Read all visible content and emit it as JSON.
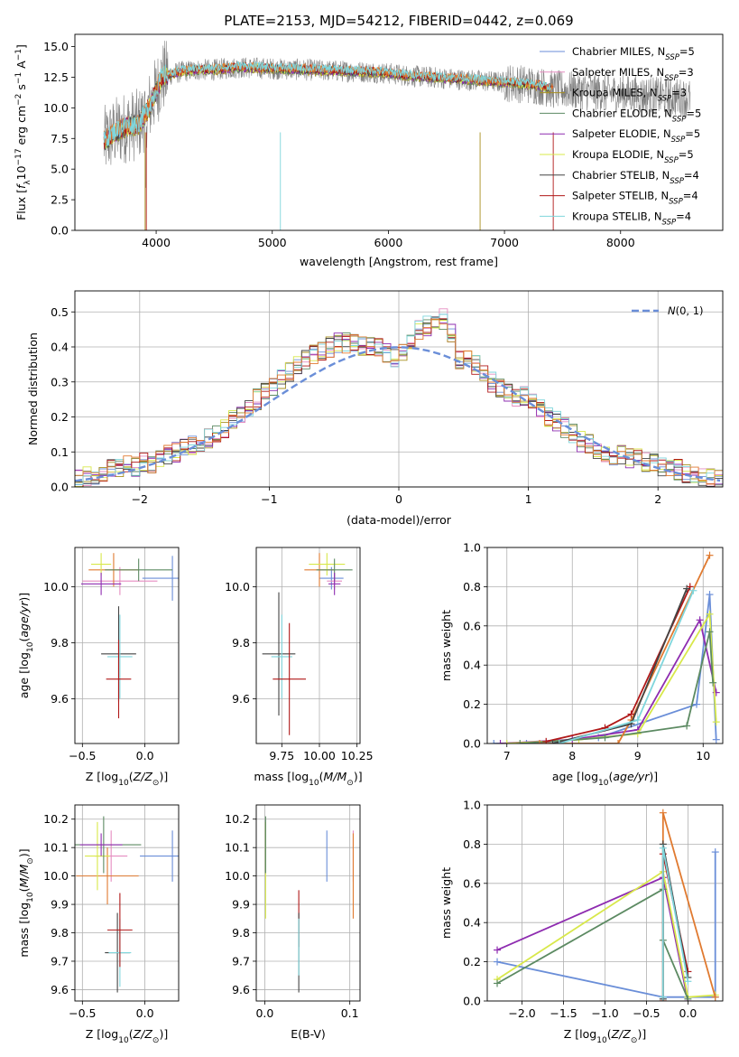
{
  "figure_title": "PLATE=2153, MJD=54212, FIBERID=0442, z=0.069",
  "colors": {
    "Chabrier MILES": "#6a8ed8",
    "Salpeter MILES": "#e58cc0",
    "Kroupa MILES": "#a89020",
    "Chabrier ELODIE": "#5c8a62",
    "Salpeter ELODIE": "#8e2cb0",
    "Kroupa ELODIE": "#d8e84a",
    "Chabrier STELIB": "#444444",
    "Salpeter STELIB": "#b01818",
    "Kroupa STELIB": "#7fd6dc",
    "orange": "#e07a30",
    "grey": "#808080"
  },
  "chart_data": [
    {
      "id": "spectrum",
      "type": "line",
      "title": "PLATE=2153, MJD=54212, FIBERID=0442, z=0.069",
      "xlabel": "wavelength [Angstrom, rest frame]",
      "ylabel": "Flux [f_λ 10^-17 erg cm^-2 s^-1 A^-1]",
      "xlim": [
        3300,
        8880
      ],
      "ylim": [
        0,
        16
      ],
      "xticks": [
        4000,
        5000,
        6000,
        7000,
        8000
      ],
      "yticks": [
        "0.0",
        "2.5",
        "5.0",
        "7.5",
        "10.0",
        "12.5",
        "15.0"
      ],
      "legend_position": "top-right",
      "legend": [
        "Chabrier MILES, N_SSP=5",
        "Salpeter MILES, N_SSP=3",
        "Kroupa MILES, N_SSP=3",
        "Chabrier ELODIE, N_SSP=5",
        "Salpeter ELODIE, N_SSP=5",
        "Kroupa ELODIE, N_SSP=5",
        "Chabrier STELIB, N_SSP=4",
        "Salpeter STELIB, N_SSP=4",
        "Kroupa STELIB, N_SSP=4"
      ],
      "model_continuum": {
        "x": [
          3550,
          3650,
          3750,
          3850,
          3950,
          4050,
          4150,
          4250,
          4350,
          4500,
          4700,
          5000,
          5300,
          5600,
          5900,
          6200,
          6500,
          6800,
          7100,
          7300,
          7420
        ],
        "y": [
          7.2,
          8.0,
          8.5,
          8.6,
          10.2,
          12.5,
          12.8,
          13.0,
          13.1,
          13.1,
          13.3,
          13.2,
          13.1,
          13.0,
          12.9,
          12.6,
          12.4,
          12.2,
          12.0,
          11.8,
          11.5
        ]
      },
      "data_range_x": [
        3550,
        8600
      ]
    },
    {
      "id": "residuals",
      "type": "histogram",
      "xlabel": "(data-model)/error",
      "ylabel": "Normed distribution",
      "xlim": [
        -2.5,
        2.5
      ],
      "ylim": [
        0,
        0.56
      ],
      "xticks": [
        "−2",
        "−1",
        "0",
        "1",
        "2"
      ],
      "yticks": [
        "0.0",
        "0.1",
        "0.2",
        "0.3",
        "0.4",
        "0.5"
      ],
      "legend": [
        "N(0,1)"
      ],
      "bin_width": 0.1,
      "bin_start": -2.5,
      "hist_mean": [
        0.02,
        0.03,
        0.03,
        0.04,
        0.05,
        0.05,
        0.06,
        0.06,
        0.07,
        0.07,
        0.08,
        0.09,
        0.1,
        0.11,
        0.12,
        0.13,
        0.14,
        0.15,
        0.17,
        0.19,
        0.21,
        0.23,
        0.25,
        0.27,
        0.29,
        0.31,
        0.33,
        0.35,
        0.36,
        0.38,
        0.39,
        0.4,
        0.41,
        0.41,
        0.41,
        0.4,
        0.4,
        0.4,
        0.38,
        0.37,
        0.38,
        0.42,
        0.45,
        0.46,
        0.47,
        0.48,
        0.44,
        0.36,
        0.37,
        0.35,
        0.33,
        0.3,
        0.28,
        0.27,
        0.26,
        0.26,
        0.25,
        0.22,
        0.2,
        0.19,
        0.17,
        0.15,
        0.13,
        0.12,
        0.11,
        0.1,
        0.09,
        0.09,
        0.08,
        0.08,
        0.07,
        0.07,
        0.06,
        0.05,
        0.05,
        0.04,
        0.04,
        0.03,
        0.03,
        0.02
      ],
      "hist_width_left": -2.5,
      "normal_curve": {
        "mean": 0,
        "sigma": 1
      }
    },
    {
      "id": "age-vs-z",
      "type": "errorbar",
      "xlabel": "Z [log10(Z/Z_sun)]",
      "ylabel": "age [log10(age/yr)]",
      "xlim": [
        -0.56,
        0.27
      ],
      "ylim": [
        9.44,
        10.14
      ],
      "xticks": [
        "−0.5",
        "0.0"
      ],
      "yticks": [
        "9.6",
        "9.8",
        "10.0"
      ],
      "points": [
        {
          "series": "Chabrier MILES",
          "x": 0.22,
          "xerr": 0.24,
          "y": 10.03,
          "yerr": 0.08
        },
        {
          "series": "Salpeter MILES",
          "x": -0.2,
          "xerr": 0.3,
          "y": 10.02,
          "yerr": 0.05
        },
        {
          "series": "orange",
          "x": -0.25,
          "xerr": 0.2,
          "y": 10.06,
          "yerr": 0.06
        },
        {
          "series": "Kroupa ELODIE",
          "x": -0.35,
          "xerr": 0.08,
          "y": 10.08,
          "yerr": 0.04
        },
        {
          "series": "Chabrier ELODIE",
          "x": -0.05,
          "xerr": 0.27,
          "y": 10.06,
          "yerr": 0.04
        },
        {
          "series": "Salpeter ELODIE",
          "x": -0.35,
          "xerr": 0.16,
          "y": 10.01,
          "yerr": 0.04
        },
        {
          "series": "Chabrier STELIB",
          "x": -0.21,
          "xerr": 0.14,
          "y": 9.76,
          "yerr": 0.17
        },
        {
          "series": "Kroupa STELIB",
          "x": -0.2,
          "xerr": 0.1,
          "y": 9.75,
          "yerr": 0.15
        },
        {
          "series": "Salpeter STELIB",
          "x": -0.21,
          "xerr": 0.1,
          "y": 9.67,
          "yerr": 0.14
        }
      ]
    },
    {
      "id": "age-vs-mass",
      "type": "errorbar",
      "xlabel": "mass [log10(M/M_sun)]",
      "ylabel": "",
      "xlim": [
        9.58,
        10.27
      ],
      "ylim": [
        9.44,
        10.14
      ],
      "xticks": [
        "9.75",
        "10.00",
        "10.25"
      ],
      "yticks": [
        "9.6",
        "9.8",
        "10.0"
      ],
      "points": [
        {
          "series": "Chabrier MILES",
          "x": 10.08,
          "xerr": 0.08,
          "y": 10.03,
          "yerr": 0.04
        },
        {
          "series": "Salpeter MILES",
          "x": 10.1,
          "xerr": 0.05,
          "y": 10.02,
          "yerr": 0.03
        },
        {
          "series": "orange",
          "x": 10.0,
          "xerr": 0.1,
          "y": 10.06,
          "yerr": 0.06
        },
        {
          "series": "Kroupa ELODIE",
          "x": 10.05,
          "xerr": 0.12,
          "y": 10.08,
          "yerr": 0.04
        },
        {
          "series": "Chabrier ELODIE",
          "x": 10.1,
          "xerr": 0.12,
          "y": 10.06,
          "yerr": 0.04
        },
        {
          "series": "Salpeter ELODIE",
          "x": 10.1,
          "xerr": 0.04,
          "y": 10.01,
          "yerr": 0.04
        },
        {
          "series": "Chabrier STELIB",
          "x": 9.73,
          "xerr": 0.11,
          "y": 9.76,
          "yerr": 0.22
        },
        {
          "series": "Kroupa STELIB",
          "x": 9.75,
          "xerr": 0.07,
          "y": 9.75,
          "yerr": 0.15
        },
        {
          "series": "Salpeter STELIB",
          "x": 9.8,
          "xerr": 0.11,
          "y": 9.67,
          "yerr": 0.2
        }
      ]
    },
    {
      "id": "mass-weight-vs-age",
      "type": "line",
      "xlabel": "age [log10(age/yr)]",
      "ylabel": "mass weight",
      "xlim": [
        6.7,
        10.3
      ],
      "ylim": [
        0,
        1
      ],
      "xticks": [
        "7",
        "8",
        "9",
        "10"
      ],
      "yticks": [
        "0.0",
        "0.2",
        "0.4",
        "0.6",
        "0.8",
        "1.0"
      ],
      "series": [
        {
          "name": "Chabrier MILES",
          "x": [
            6.8,
            7.3,
            8.4,
            9.9,
            10.1,
            10.2
          ],
          "y": [
            0.0,
            0.0,
            0.03,
            0.2,
            0.76,
            0.02
          ]
        },
        {
          "name": "Salpeter ELODIE",
          "x": [
            6.9,
            8.0,
            9.0,
            9.95,
            10.2
          ],
          "y": [
            0.0,
            0.02,
            0.07,
            0.63,
            0.26
          ]
        },
        {
          "name": "Kroupa ELODIE",
          "x": [
            7.0,
            8.1,
            9.0,
            10.1,
            10.2
          ],
          "y": [
            0.0,
            0.02,
            0.05,
            0.66,
            0.11
          ]
        },
        {
          "name": "Chabrier ELODIE",
          "x": [
            7.2,
            8.5,
            9.75,
            10.1,
            10.15
          ],
          "y": [
            0.0,
            0.03,
            0.09,
            0.57,
            0.31
          ]
        },
        {
          "name": "orange",
          "x": [
            7.5,
            8.7,
            8.9,
            10.1
          ],
          "y": [
            0.0,
            0.0,
            0.12,
            0.96
          ]
        },
        {
          "name": "Salpeter STELIB",
          "x": [
            7.6,
            8.5,
            8.9,
            9.8
          ],
          "y": [
            0.01,
            0.08,
            0.15,
            0.8
          ]
        },
        {
          "name": "Chabrier STELIB",
          "x": [
            7.7,
            8.9,
            9.75
          ],
          "y": [
            0.0,
            0.1,
            0.79
          ]
        },
        {
          "name": "Kroupa STELIB",
          "x": [
            7.8,
            9.0,
            9.85
          ],
          "y": [
            0.0,
            0.12,
            0.78
          ]
        }
      ]
    },
    {
      "id": "mass-vs-z",
      "type": "errorbar",
      "xlabel": "Z [log10(Z/Z_sun)]",
      "ylabel": "mass [log10(M/M_sun)]",
      "xlim": [
        -0.56,
        0.27
      ],
      "ylim": [
        9.56,
        10.25
      ],
      "xticks": [
        "−0.5",
        "0.0"
      ],
      "yticks": [
        "9.6",
        "9.7",
        "9.8",
        "9.9",
        "10.0",
        "10.1",
        "10.2"
      ],
      "points": [
        {
          "series": "Chabrier MILES",
          "x": 0.22,
          "xerr": 0.26,
          "y": 10.07,
          "yerr": 0.09
        },
        {
          "series": "Salpeter MILES",
          "x": -0.27,
          "xerr": 0.13,
          "y": 10.07,
          "yerr": 0.09
        },
        {
          "series": "orange",
          "x": -0.3,
          "xerr": 0.25,
          "y": 10.0,
          "yerr": 0.1
        },
        {
          "series": "Kroupa ELODIE",
          "x": -0.38,
          "xerr": 0.1,
          "y": 10.07,
          "yerr": 0.12
        },
        {
          "series": "Chabrier ELODIE",
          "x": -0.33,
          "xerr": 0.3,
          "y": 10.11,
          "yerr": 0.1
        },
        {
          "series": "Salpeter ELODIE",
          "x": -0.35,
          "xerr": 0.17,
          "y": 10.11,
          "yerr": 0.04
        },
        {
          "series": "Chabrier STELIB",
          "x": -0.22,
          "xerr": 0.1,
          "y": 9.73,
          "yerr": 0.14
        },
        {
          "series": "Kroupa STELIB",
          "x": -0.2,
          "xerr": 0.09,
          "y": 9.73,
          "yerr": 0.12
        },
        {
          "series": "Salpeter STELIB",
          "x": -0.2,
          "xerr": 0.1,
          "y": 9.81,
          "yerr": 0.13
        }
      ]
    },
    {
      "id": "mass-vs-ebv",
      "type": "errorbar",
      "xlabel": "E(B-V)",
      "ylabel": "",
      "xlim": [
        -0.01,
        0.112
      ],
      "ylim": [
        9.56,
        10.25
      ],
      "xticks": [
        "0.0",
        "0.1"
      ],
      "yticks": [
        "9.6",
        "9.7",
        "9.8",
        "9.9",
        "10.0",
        "10.1",
        "10.2"
      ],
      "points": [
        {
          "series": "Chabrier MILES",
          "x": 0.073,
          "xerr": 0,
          "y": 10.07,
          "yerr": 0.09
        },
        {
          "series": "Salpeter MILES",
          "x": 0.104,
          "xerr": 0,
          "y": 10.07,
          "yerr": 0.09
        },
        {
          "series": "orange",
          "x": 0.104,
          "xerr": 0,
          "y": 10.0,
          "yerr": 0.15
        },
        {
          "series": "Kroupa ELODIE",
          "x": 0.001,
          "xerr": 0,
          "y": 10.02,
          "yerr": 0.17
        },
        {
          "series": "Chabrier ELODIE",
          "x": 0.001,
          "xerr": 0,
          "y": 10.11,
          "yerr": 0.1
        },
        {
          "series": "Salpeter STELIB",
          "x": 0.04,
          "xerr": 0,
          "y": 9.85,
          "yerr": 0.1
        },
        {
          "series": "Chabrier STELIB",
          "x": 0.04,
          "xerr": 0,
          "y": 9.73,
          "yerr": 0.14
        },
        {
          "series": "Kroupa STELIB",
          "x": 0.04,
          "xerr": 0,
          "y": 9.75,
          "yerr": 0.1
        }
      ]
    },
    {
      "id": "mass-weight-vs-z",
      "type": "line",
      "xlabel": "Z [log10(Z/Z_sun)]",
      "ylabel": "mass weight",
      "xlim": [
        -2.42,
        0.42
      ],
      "ylim": [
        0,
        1
      ],
      "xticks": [
        "−2.0",
        "−1.5",
        "−1.0",
        "−0.5",
        "0.0"
      ],
      "yticks": [
        "0.0",
        "0.2",
        "0.4",
        "0.6",
        "0.8",
        "1.0"
      ],
      "series": [
        {
          "name": "Chabrier MILES",
          "x": [
            -2.3,
            -0.3,
            0.0,
            0.33,
            0.33
          ],
          "y": [
            0.2,
            0.02,
            0.02,
            0.02,
            0.76
          ]
        },
        {
          "name": "Salpeter ELODIE",
          "x": [
            -2.3,
            -0.3,
            0.0
          ],
          "y": [
            0.26,
            0.63,
            0.0
          ]
        },
        {
          "name": "Kroupa ELODIE",
          "x": [
            -2.3,
            -0.3,
            0.0,
            0.33
          ],
          "y": [
            0.11,
            0.66,
            0.02,
            0.03
          ]
        },
        {
          "name": "Chabrier ELODIE",
          "x": [
            -2.3,
            -0.3,
            -0.3,
            0.0
          ],
          "y": [
            0.09,
            0.57,
            0.31,
            0.01
          ]
        },
        {
          "name": "orange",
          "x": [
            -0.3,
            -0.3,
            0.33
          ],
          "y": [
            0.0,
            0.96,
            0.02
          ]
        },
        {
          "name": "Salpeter STELIB",
          "x": [
            -0.3,
            -0.3,
            0.0
          ],
          "y": [
            0.0,
            0.75,
            0.15
          ]
        },
        {
          "name": "Chabrier STELIB",
          "x": [
            -0.3,
            -0.3,
            0.0
          ],
          "y": [
            0.01,
            0.8,
            0.12
          ]
        },
        {
          "name": "Kroupa STELIB",
          "x": [
            -0.3,
            -0.3,
            0.0
          ],
          "y": [
            0.02,
            0.78,
            0.1
          ]
        }
      ]
    }
  ]
}
